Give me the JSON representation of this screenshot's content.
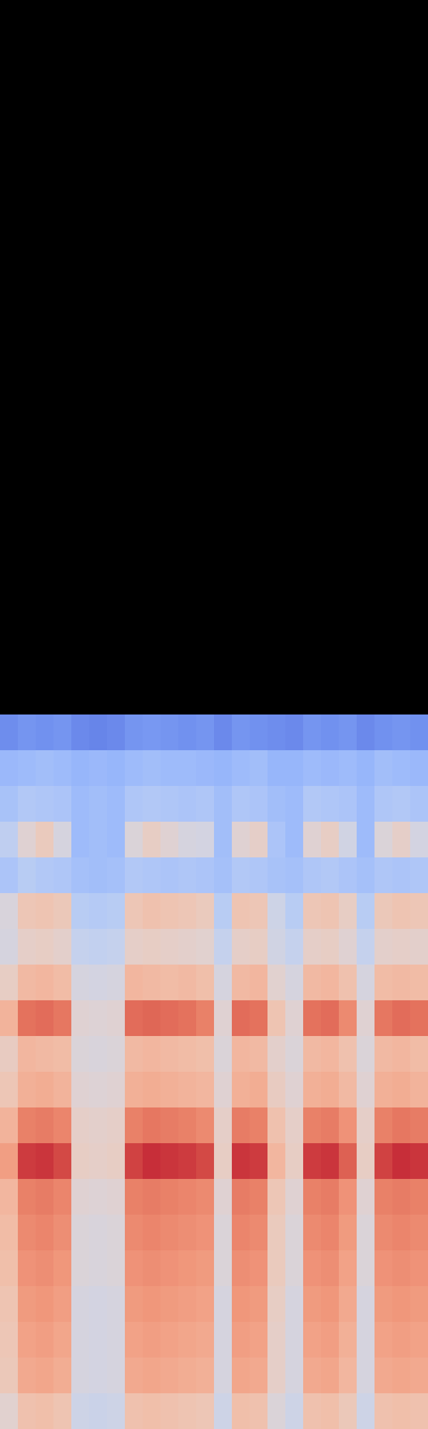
{
  "chart_data": {
    "type": "heatmap",
    "tick_labels": false,
    "xlim": [
      0,
      24
    ],
    "ylim": [
      0,
      40
    ],
    "zlim": [
      0,
      100
    ],
    "cells": [
      [
        53,
        62,
        63,
        61,
        45,
        44,
        45,
        62,
        63,
        62,
        61,
        60,
        45,
        63,
        62,
        50,
        45,
        62,
        63,
        59,
        45,
        62,
        63,
        62
      ],
      [
        59,
        70,
        71,
        69,
        48,
        47,
        48,
        70,
        71,
        70,
        69,
        68,
        48,
        71,
        70,
        55,
        48,
        70,
        71,
        66,
        48,
        70,
        71,
        70
      ],
      [
        60,
        72,
        73,
        71,
        48,
        47,
        48,
        72,
        73,
        72,
        71,
        70,
        48,
        73,
        72,
        55,
        48,
        72,
        73,
        68,
        48,
        72,
        73,
        72
      ],
      [
        61,
        74,
        75,
        73,
        48,
        47,
        48,
        74,
        75,
        74,
        73,
        72,
        48,
        75,
        74,
        56,
        48,
        74,
        75,
        70,
        48,
        74,
        75,
        74
      ],
      [
        63,
        76,
        77,
        75,
        50,
        49,
        50,
        76,
        77,
        76,
        75,
        74,
        50,
        77,
        76,
        58,
        50,
        76,
        77,
        72,
        50,
        76,
        77,
        76
      ],
      [
        64,
        78,
        79,
        77,
        50,
        49,
        50,
        78,
        79,
        78,
        77,
        76,
        50,
        79,
        78,
        58,
        50,
        78,
        79,
        74,
        50,
        78,
        79,
        78
      ],
      [
        66,
        80,
        81,
        79,
        52,
        51,
        52,
        80,
        81,
        80,
        79,
        78,
        52,
        81,
        80,
        60,
        52,
        80,
        81,
        76,
        52,
        80,
        81,
        80
      ],
      [
        73,
        92,
        93,
        90,
        56,
        55,
        56,
        91,
        94,
        93,
        92,
        90,
        56,
        93,
        92,
        66,
        56,
        92,
        93,
        86,
        56,
        91,
        94,
        93
      ],
      [
        67,
        80,
        81,
        79,
        55,
        54,
        55,
        80,
        82,
        81,
        80,
        78,
        55,
        81,
        80,
        62,
        55,
        80,
        81,
        76,
        55,
        80,
        82,
        81
      ],
      [
        60,
        68,
        69,
        67,
        52,
        51,
        52,
        68,
        69,
        68,
        67,
        66,
        52,
        68,
        69,
        57,
        52,
        68,
        69,
        65,
        52,
        68,
        69,
        67
      ],
      [
        57,
        66,
        65,
        64,
        50,
        49,
        50,
        65,
        66,
        65,
        64,
        63,
        50,
        66,
        65,
        54,
        50,
        65,
        66,
        62,
        50,
        65,
        66,
        64
      ],
      [
        67,
        83,
        84,
        82,
        52,
        51,
        52,
        84,
        85,
        84,
        83,
        80,
        52,
        84,
        83,
        61,
        52,
        83,
        84,
        78,
        52,
        82,
        84,
        83
      ],
      [
        56,
        65,
        66,
        64,
        48,
        47,
        48,
        66,
        65,
        64,
        65,
        63,
        48,
        65,
        66,
        53,
        48,
        65,
        66,
        62,
        48,
        64,
        65,
        64
      ],
      [
        48,
        55,
        56,
        54,
        42,
        41,
        42,
        55,
        56,
        55,
        54,
        53,
        42,
        55,
        56,
        46,
        42,
        55,
        56,
        52,
        42,
        54,
        55,
        54
      ],
      [
        49,
        60,
        61,
        59,
        38,
        37,
        38,
        60,
        62,
        61,
        60,
        58,
        38,
        61,
        60,
        45,
        38,
        60,
        61,
        56,
        38,
        59,
        61,
        60
      ],
      [
        34,
        38,
        36,
        35,
        32,
        31,
        32,
        36,
        35,
        34,
        35,
        34,
        32,
        36,
        35,
        33,
        32,
        35,
        36,
        34,
        32,
        35,
        34,
        35
      ],
      [
        40,
        52,
        58,
        48,
        30,
        31,
        30,
        50,
        56,
        52,
        48,
        47,
        31,
        52,
        55,
        34,
        30,
        52,
        56,
        46,
        30,
        50,
        55,
        47
      ],
      [
        33,
        36,
        35,
        34,
        30,
        31,
        30,
        35,
        36,
        35,
        34,
        35,
        31,
        35,
        34,
        31,
        30,
        36,
        35,
        34,
        30,
        35,
        36,
        34
      ],
      [
        29,
        30,
        31,
        30,
        28,
        29,
        28,
        30,
        31,
        30,
        30,
        29,
        28,
        30,
        31,
        28,
        28,
        30,
        29,
        30,
        28,
        31,
        30,
        29
      ],
      [
        16,
        18,
        17,
        18,
        15,
        14,
        15,
        18,
        19,
        18,
        17,
        18,
        15,
        18,
        17,
        16,
        15,
        18,
        17,
        18,
        15,
        17,
        18,
        17
      ]
    ]
  }
}
